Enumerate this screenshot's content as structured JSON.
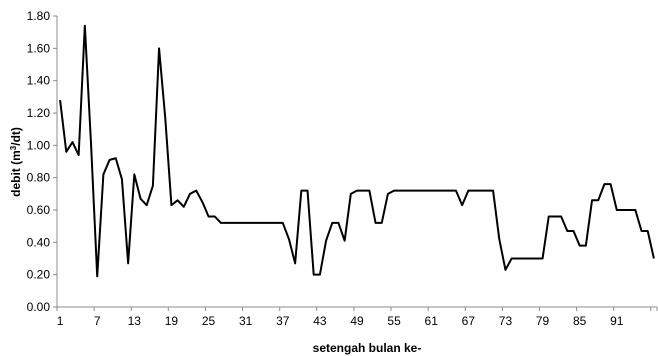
{
  "chart_data": {
    "type": "line",
    "title": "",
    "xlabel": "setengah bulan ke-",
    "ylabel_main": "debit (m",
    "ylabel_sup": "3",
    "ylabel_tail": "/dt)",
    "ylim": [
      0,
      1.8
    ],
    "yticks": [
      0.0,
      0.2,
      0.4,
      0.6,
      0.8,
      1.0,
      1.2,
      1.4,
      1.6,
      1.8
    ],
    "ytick_labels": [
      "0.00",
      "0.20",
      "0.40",
      "0.60",
      "0.80",
      "1.00",
      "1.20",
      "1.40",
      "1.60",
      "1.80"
    ],
    "xlim": [
      1,
      97
    ],
    "xticks": [
      1,
      7,
      13,
      19,
      25,
      31,
      37,
      43,
      49,
      55,
      61,
      67,
      73,
      79,
      85,
      91
    ],
    "xtick_labels": [
      "1",
      "7",
      "13",
      "19",
      "25",
      "31",
      "37",
      "43",
      "49",
      "55",
      "61",
      "67",
      "73",
      "79",
      "85",
      "91"
    ],
    "grid": false,
    "series": [
      {
        "x": [
          1,
          2,
          3,
          4,
          5,
          6,
          7,
          8,
          9,
          10,
          11,
          12,
          13,
          14,
          15,
          16,
          17,
          18,
          19,
          20,
          21,
          22,
          23,
          24,
          25,
          26,
          27,
          28,
          29,
          30,
          31,
          32,
          33,
          34,
          35,
          36,
          37,
          38,
          39,
          40,
          41,
          42,
          43,
          44,
          45,
          46,
          47,
          48,
          49,
          50,
          51,
          52,
          53,
          54,
          55,
          56,
          57,
          58,
          59,
          60,
          61,
          62,
          63,
          64,
          65,
          66,
          67,
          68,
          69,
          70,
          71,
          72,
          73,
          74,
          75,
          76,
          77,
          78,
          79,
          80,
          81,
          82,
          83,
          84,
          85,
          86,
          87,
          88,
          89,
          90,
          91,
          92,
          93,
          94,
          95,
          96,
          97
        ],
        "y": [
          1.28,
          0.96,
          1.02,
          0.94,
          1.74,
          1.01,
          0.19,
          0.82,
          0.91,
          0.92,
          0.79,
          0.27,
          0.82,
          0.67,
          0.63,
          0.75,
          1.6,
          1.17,
          0.63,
          0.66,
          0.62,
          0.7,
          0.72,
          0.65,
          0.56,
          0.56,
          0.52,
          0.52,
          0.52,
          0.52,
          0.52,
          0.52,
          0.52,
          0.52,
          0.52,
          0.52,
          0.52,
          0.42,
          0.27,
          0.72,
          0.72,
          0.2,
          0.2,
          0.41,
          0.52,
          0.52,
          0.41,
          0.7,
          0.72,
          0.72,
          0.72,
          0.52,
          0.52,
          0.7,
          0.72,
          0.72,
          0.72,
          0.72,
          0.72,
          0.72,
          0.72,
          0.72,
          0.72,
          0.72,
          0.72,
          0.63,
          0.72,
          0.72,
          0.72,
          0.72,
          0.72,
          0.42,
          0.23,
          0.3,
          0.3,
          0.3,
          0.3,
          0.3,
          0.3,
          0.56,
          0.56,
          0.56,
          0.47,
          0.47,
          0.38,
          0.38,
          0.66,
          0.66,
          0.76,
          0.76,
          0.6,
          0.6,
          0.6,
          0.6,
          0.47,
          0.47,
          0.3
        ]
      }
    ]
  }
}
